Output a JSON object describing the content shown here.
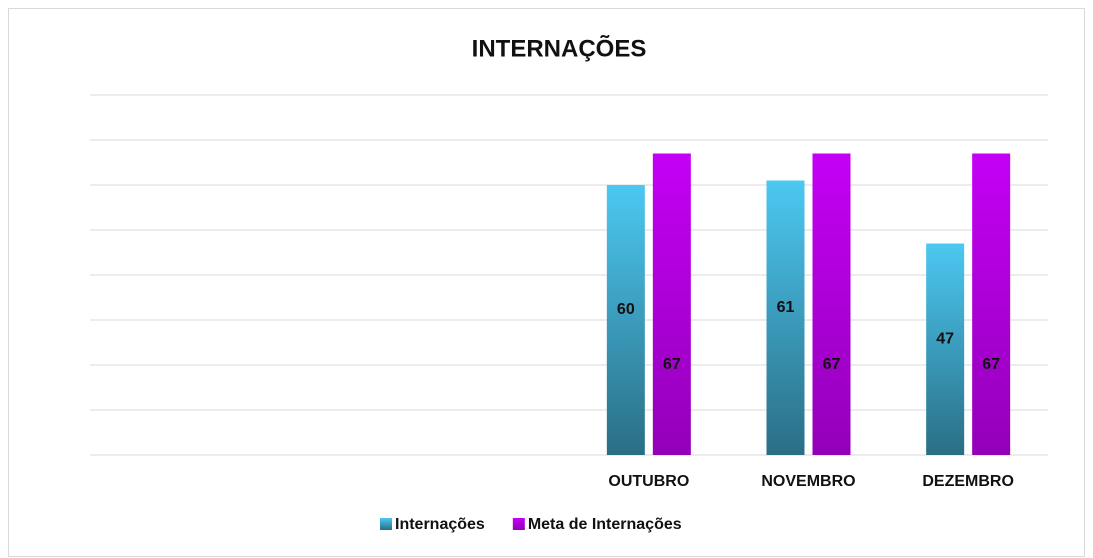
{
  "chart_data": {
    "type": "bar",
    "title": "INTERNAÇÕES",
    "categories": [
      null,
      null,
      null,
      "OUTUBRO",
      "NOVEMBRO",
      "DEZEMBRO"
    ],
    "series": [
      {
        "name": "Internações",
        "color": "#4cc8f2",
        "values": [
          null,
          null,
          null,
          60,
          61,
          47
        ]
      },
      {
        "name": "Meta de Internações",
        "color": "#c400f5",
        "values": [
          null,
          null,
          null,
          67,
          67,
          67
        ]
      }
    ],
    "ylim": [
      0,
      80
    ],
    "yticks": [
      0,
      10,
      20,
      30,
      40,
      50,
      60,
      70,
      80
    ],
    "grid": true,
    "legend": "bottom"
  }
}
